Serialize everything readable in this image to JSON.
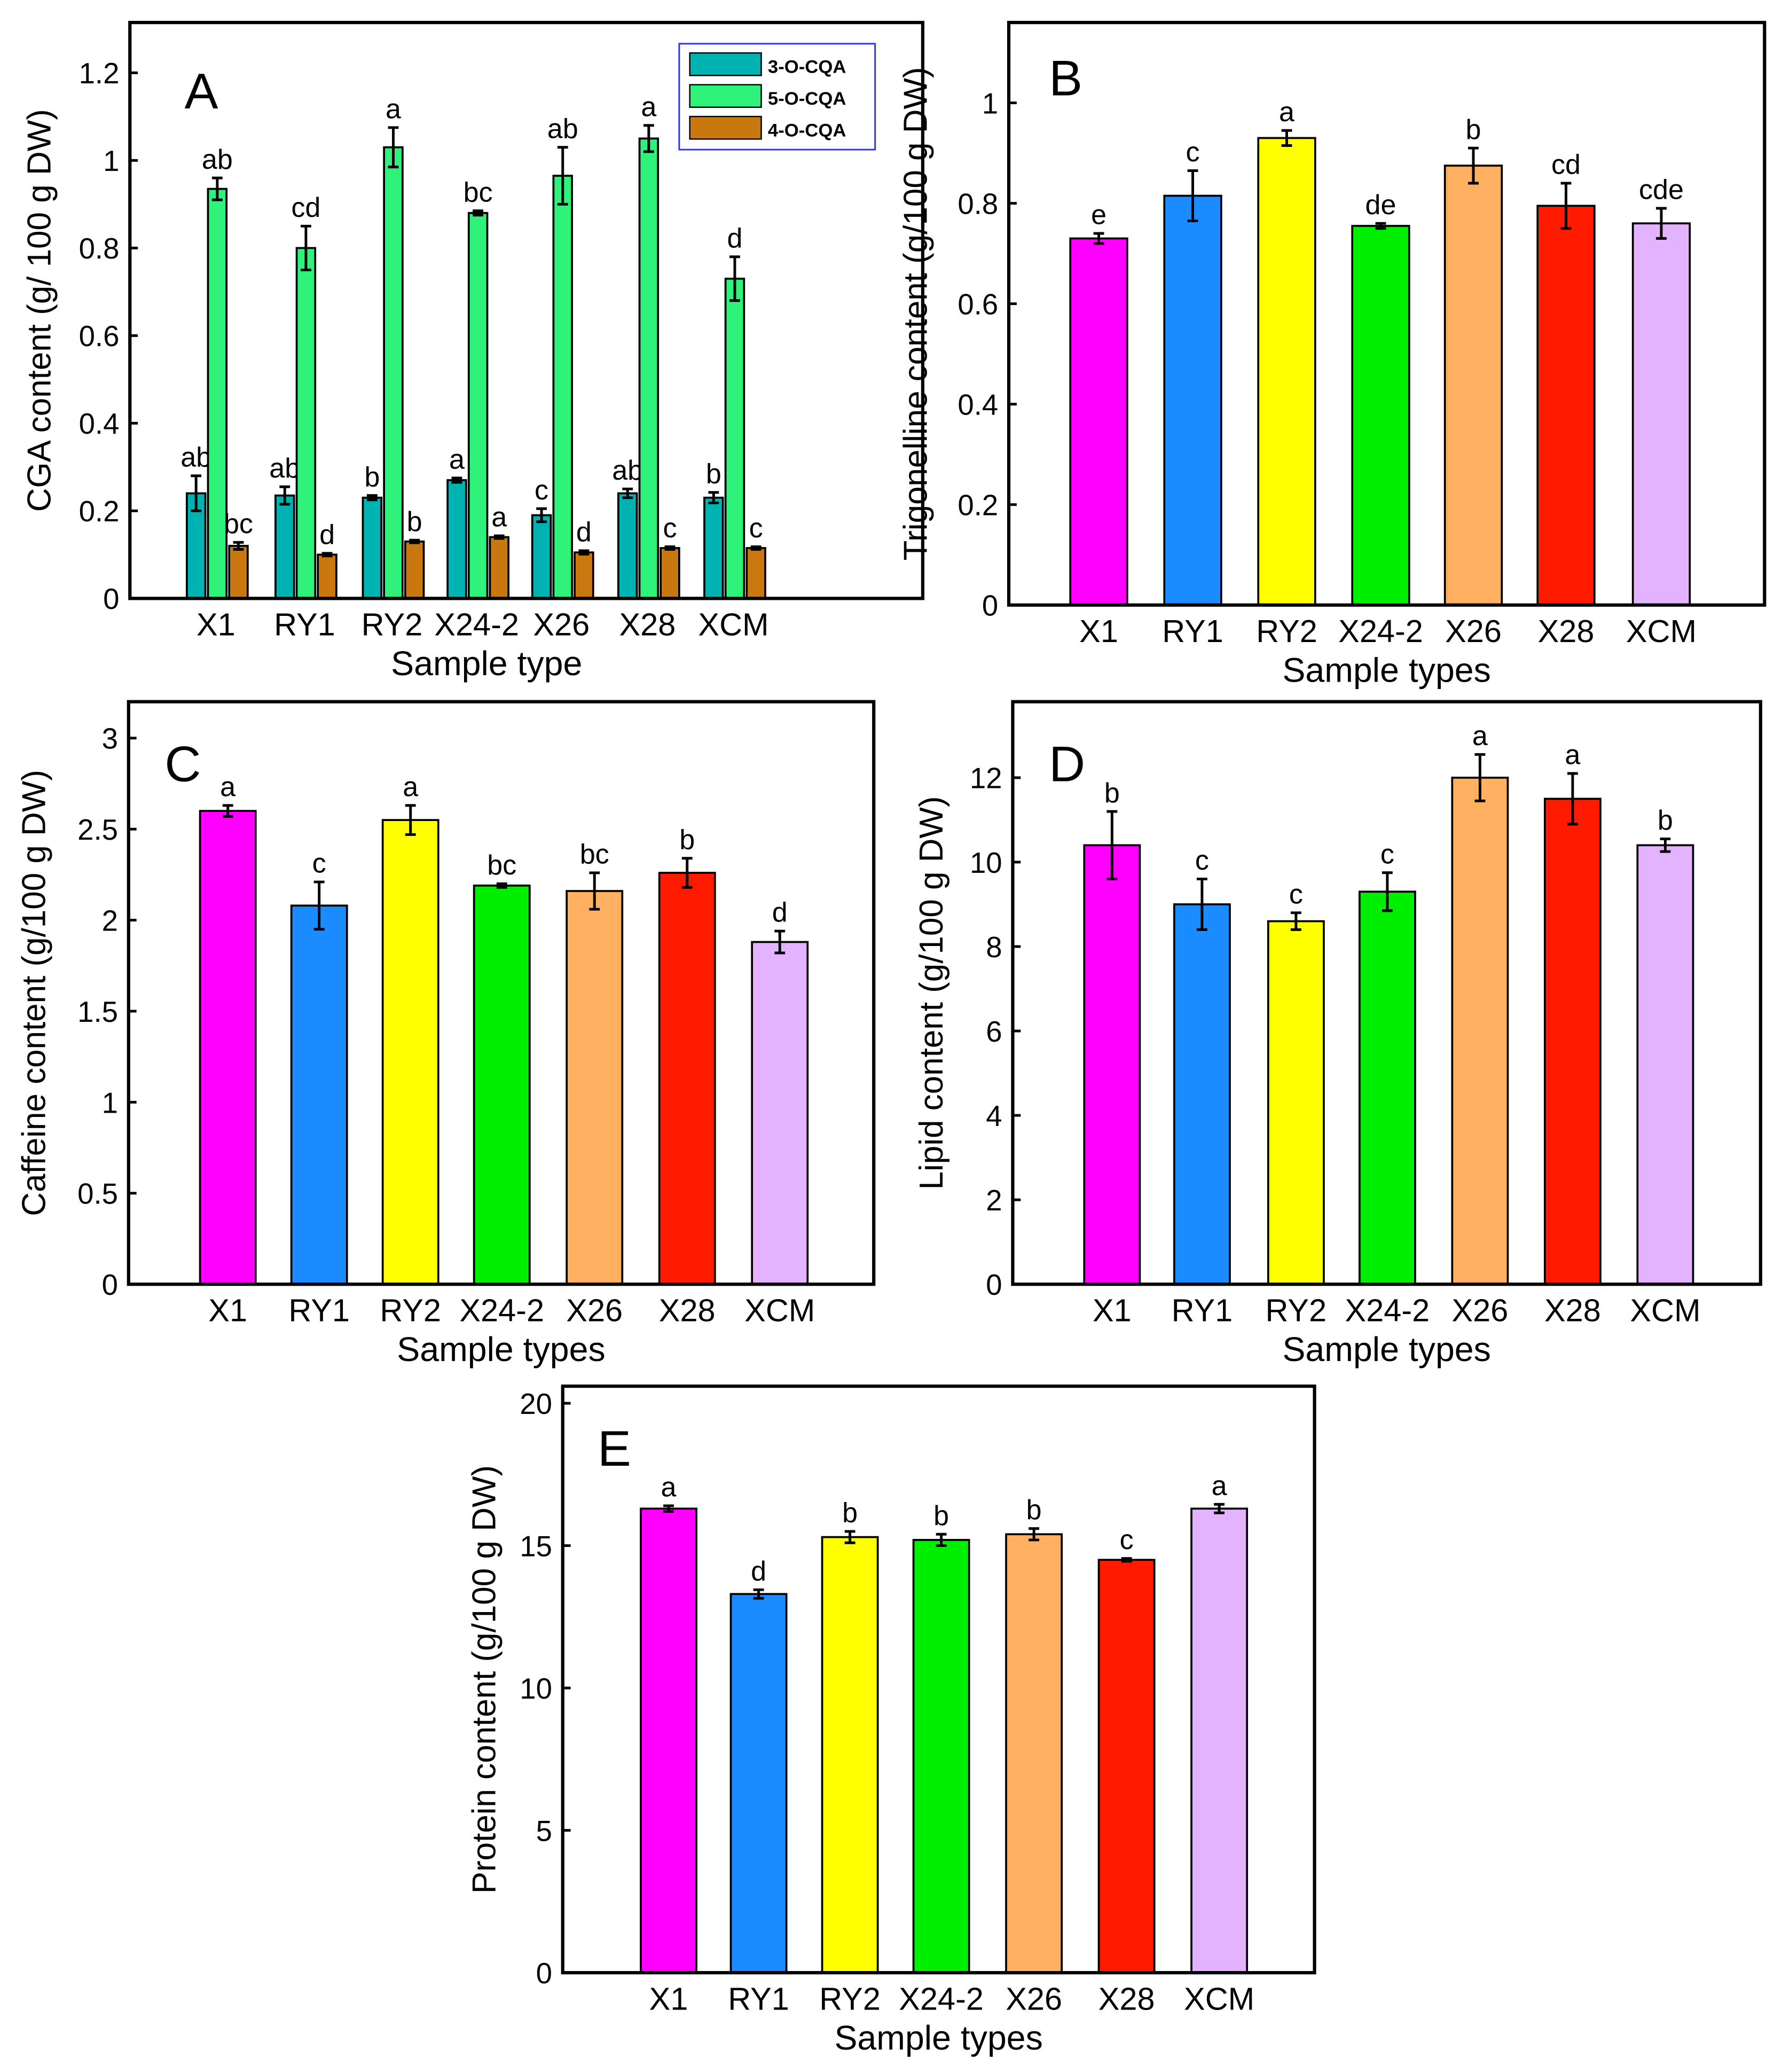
{
  "chart_data": [
    {
      "type": "bar",
      "panel": "A",
      "categories": [
        "X1",
        "RY1",
        "RY2",
        "X24-2",
        "X26",
        "X28",
        "XCM"
      ],
      "xlabel": "Sample type",
      "ylabel": "CGA content (g/ 100 g DW)",
      "ylim": [
        0,
        1.2
      ],
      "yticks": [
        "0",
        "0.2",
        "0.4",
        "0.6",
        "0.8",
        "1",
        "1.2"
      ],
      "legend_position": "top-right",
      "series": [
        {
          "name": "3-O-CQA",
          "color": "#00b3b3",
          "values": [
            0.24,
            0.235,
            0.23,
            0.27,
            0.19,
            0.24,
            0.23
          ],
          "errors": [
            0.04,
            0.02,
            0.005,
            0.005,
            0.015,
            0.01,
            0.012
          ],
          "letters": [
            "ab",
            "ab",
            "b",
            "a",
            "c",
            "ab",
            "b"
          ]
        },
        {
          "name": "5-O-CQA",
          "color": "#2ef27a",
          "values": [
            0.935,
            0.8,
            1.03,
            0.88,
            0.965,
            1.05,
            0.73
          ],
          "errors": [
            0.025,
            0.05,
            0.045,
            0.005,
            0.065,
            0.03,
            0.05
          ],
          "letters": [
            "ab",
            "cd",
            "a",
            "bc",
            "ab",
            "a",
            "d"
          ]
        },
        {
          "name": "4-O-CQA",
          "color": "#c8780f",
          "values": [
            0.12,
            0.1,
            0.13,
            0.14,
            0.105,
            0.115,
            0.115
          ],
          "errors": [
            0.008,
            0.003,
            0.003,
            0.003,
            0.004,
            0.003,
            0.003
          ],
          "letters": [
            "bc",
            "d",
            "b",
            "a",
            "d",
            "c",
            "c"
          ]
        }
      ]
    },
    {
      "type": "bar",
      "panel": "B",
      "categories": [
        "X1",
        "RY1",
        "RY2",
        "X24-2",
        "X26",
        "X28",
        "XCM"
      ],
      "xlabel": "Sample types",
      "ylabel": "Trigonelline content (g/100 g DW)",
      "ylim": [
        0,
        1.16
      ],
      "yticks": [
        "0",
        "0.2",
        "0.4",
        "0.6",
        "0.8",
        "1"
      ],
      "values": [
        0.73,
        0.815,
        0.93,
        0.755,
        0.875,
        0.795,
        0.76
      ],
      "errors": [
        0.01,
        0.05,
        0.015,
        0.005,
        0.035,
        0.045,
        0.03
      ],
      "letters": [
        "e",
        "c",
        "a",
        "de",
        "b",
        "cd",
        "cde"
      ]
    },
    {
      "type": "bar",
      "panel": "C",
      "categories": [
        "X1",
        "RY1",
        "RY2",
        "X24-2",
        "X26",
        "X28",
        "XCM"
      ],
      "xlabel": "Sample types",
      "ylabel": "Caffeine content (g/100 g DW)",
      "ylim": [
        0,
        3.2
      ],
      "yticks": [
        "0",
        "0.5",
        "1",
        "1.5",
        "2",
        "2.5",
        "3"
      ],
      "values": [
        2.6,
        2.08,
        2.55,
        2.19,
        2.16,
        2.26,
        1.88
      ],
      "errors": [
        0.03,
        0.13,
        0.08,
        0.01,
        0.1,
        0.08,
        0.06
      ],
      "letters": [
        "a",
        "c",
        "a",
        "bc",
        "bc",
        "b",
        "d"
      ]
    },
    {
      "type": "bar",
      "panel": "D",
      "categories": [
        "X1",
        "RY1",
        "RY2",
        "X24-2",
        "X26",
        "X28",
        "XCM"
      ],
      "xlabel": "Sample types",
      "ylabel": "Lipid content (g/100 g DW)",
      "ylim": [
        0,
        13.8
      ],
      "yticks": [
        "0",
        "2",
        "4",
        "6",
        "8",
        "10",
        "12"
      ],
      "values": [
        10.4,
        9.0,
        8.6,
        9.3,
        12.0,
        11.5,
        10.4
      ],
      "errors": [
        0.8,
        0.6,
        0.2,
        0.45,
        0.55,
        0.6,
        0.15
      ],
      "letters": [
        "b",
        "c",
        "c",
        "c",
        "a",
        "a",
        "b"
      ]
    },
    {
      "type": "bar",
      "panel": "E",
      "categories": [
        "X1",
        "RY1",
        "RY2",
        "X24-2",
        "X26",
        "X28",
        "XCM"
      ],
      "xlabel": "Sample types",
      "ylabel": "Protein content (g/100 g DW)",
      "ylim": [
        0,
        20.6
      ],
      "yticks": [
        "0",
        "5",
        "10",
        "15",
        "20"
      ],
      "values": [
        16.3,
        13.3,
        15.3,
        15.2,
        15.4,
        14.5,
        16.3
      ],
      "errors": [
        0.1,
        0.15,
        0.2,
        0.2,
        0.2,
        0.05,
        0.15
      ],
      "letters": [
        "a",
        "d",
        "b",
        "b",
        "b",
        "c",
        "a"
      ]
    }
  ],
  "bar_colors": [
    "#ff00ff",
    "#1a8cff",
    "#ffff00",
    "#00ee00",
    "#ffb060",
    "#ff1a00",
    "#e3b3ff"
  ]
}
